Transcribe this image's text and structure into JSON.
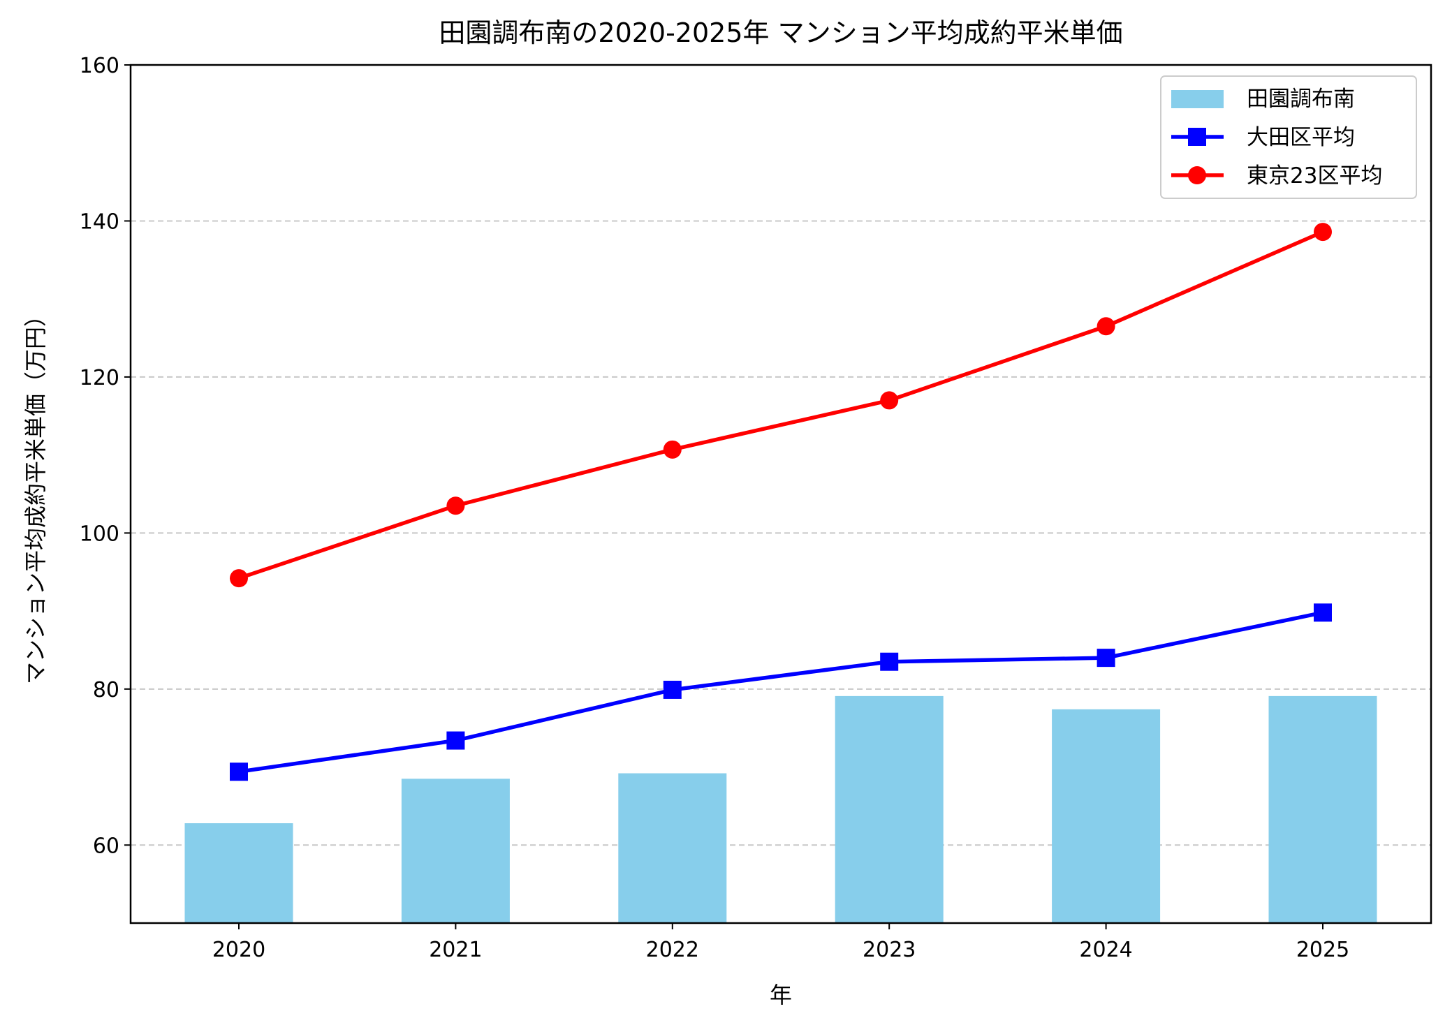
{
  "chart_data": {
    "type": "bar+line",
    "title": "田園調布南の2020-2025年 マンション平均成約平米単価",
    "xlabel": "年",
    "ylabel": "マンション平均成約平米単価（万円）",
    "categories": [
      "2020",
      "2021",
      "2022",
      "2023",
      "2024",
      "2025"
    ],
    "ylim": [
      50,
      160
    ],
    "yticks": [
      60,
      80,
      100,
      120,
      140,
      160
    ],
    "grid": "y-dashed",
    "legend_position": "top-right",
    "series": [
      {
        "name": "田園調布南",
        "type": "bar",
        "color": "#87ceeb",
        "values": [
          62.8,
          68.5,
          69.2,
          79.1,
          77.4,
          79.1
        ]
      },
      {
        "name": "大田区平均",
        "type": "line",
        "marker": "square",
        "color": "#0000ff",
        "values": [
          69.4,
          73.4,
          79.9,
          83.5,
          84.0,
          89.8
        ]
      },
      {
        "name": "東京23区平均",
        "type": "line",
        "marker": "circle",
        "color": "#ff0000",
        "values": [
          94.2,
          103.5,
          110.7,
          117.0,
          126.5,
          138.6
        ]
      }
    ]
  }
}
